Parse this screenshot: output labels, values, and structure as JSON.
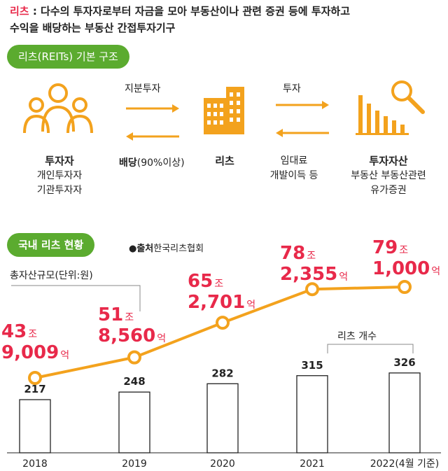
{
  "definition": {
    "term": "리츠",
    "line1": " : 다수의 투자자로부터 자금을 모아 부동산이나 관련 증권 등에 투자하고",
    "line2": "수익을 배당하는 부동산 간접투자기구"
  },
  "structure": {
    "pill": "리츠(REITs) 기본 구조",
    "investor": {
      "title": "투자자",
      "line1": "개인투자자",
      "line2": "기관투자자"
    },
    "reit": {
      "title": "리츠"
    },
    "asset": {
      "title": "투자자산",
      "line1": "부동산 부동산관련",
      "line2": "유가증권"
    },
    "equity_label": "지분투자",
    "dividend_bold": "배당",
    "dividend_rest": "(90%이상)",
    "invest_label": "투자",
    "income_line1": "임대료",
    "income_line2": "개발이득 등",
    "colors": {
      "orange": "#f3a21d",
      "green": "#5bab2f",
      "red": "#e8294a"
    },
    "icons": [
      "people-icon",
      "building-icon",
      "bar-chart-magnifier-icon",
      "arrow-right-icon",
      "arrow-left-icon"
    ]
  },
  "status": {
    "pill": "국내 리츠 현황",
    "source_bold": "●출처",
    "source_rest": "한국리츠협회",
    "assets_label": "총자산규모(단위:원)",
    "count_label": "리츠 개수"
  },
  "chart_data": {
    "type": "line+bar",
    "categories": [
      "2018",
      "2019",
      "2020",
      "2021",
      "2022(4월 기준)"
    ],
    "series": [
      {
        "values_eok": [
          439009,
          518560,
          652701,
          782355,
          791000
        ],
        "labels": [
          {
            "jo": "43",
            "eok": "9,009"
          },
          {
            "jo": "51",
            "eok": "8,560"
          },
          {
            "jo": "65",
            "eok": "2,701"
          },
          {
            "jo": "78",
            "eok": "2,355"
          },
          {
            "jo": "79",
            "eok": "1,000"
          }
        ],
        "unit_jo": "조",
        "unit_eok": "억"
      },
      {
        "values": [
          217,
          248,
          282,
          315,
          326
        ]
      }
    ]
  }
}
